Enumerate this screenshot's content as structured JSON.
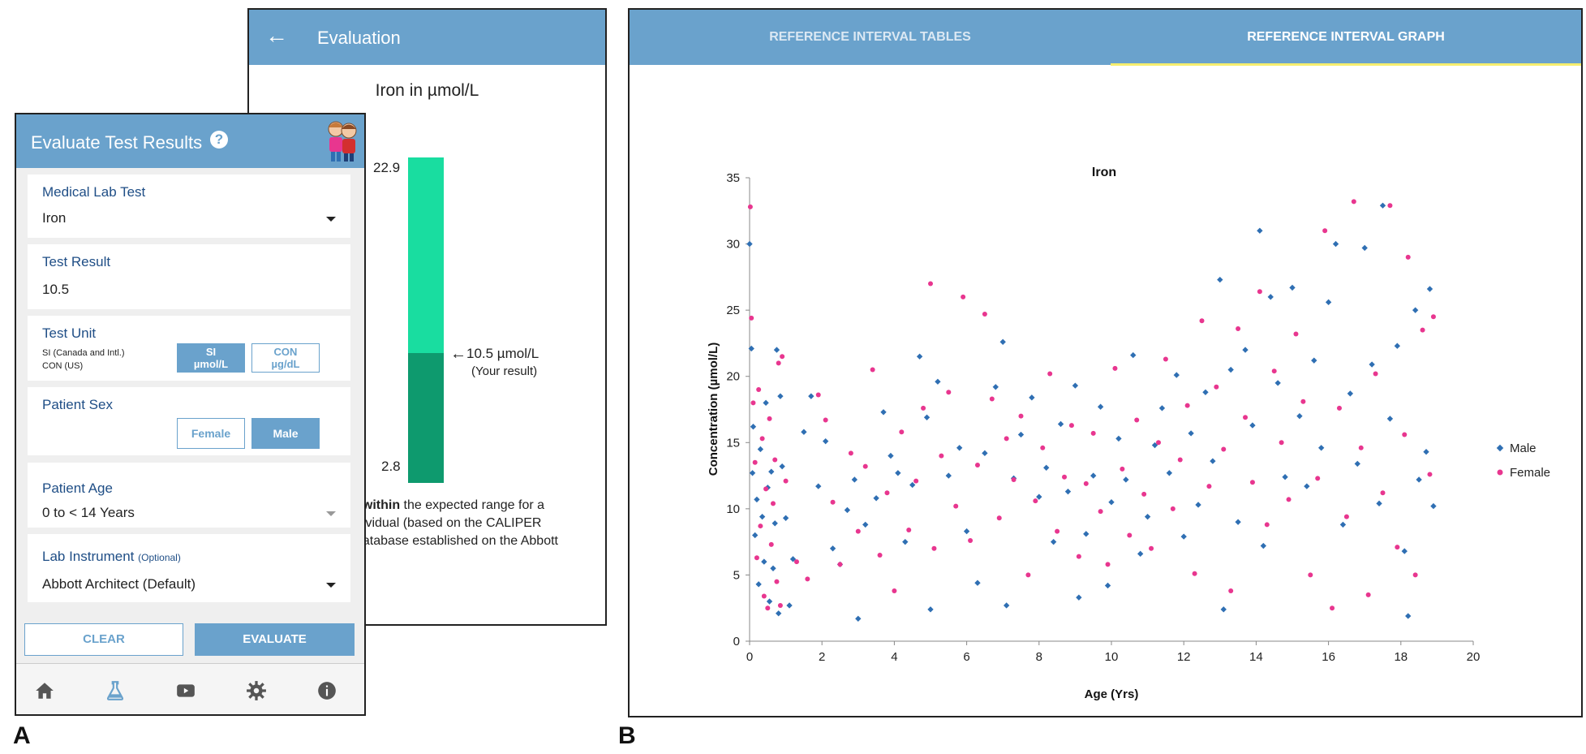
{
  "figure_labels": {
    "a": "A",
    "b": "B"
  },
  "evaluation": {
    "header_title": "Evaluation",
    "heading": "Iron in µmol/L",
    "upper_limit": "22.9",
    "lower_limit": "2.8",
    "result_value": "10.5 µmol/L",
    "result_caption": "(Your result)",
    "text_line1_bold": "l within",
    "text_line1_rest": " the expected range for a",
    "text_line2": "dividual (based on the CALIPER",
    "text_line3": "database established on the Abbott"
  },
  "phone": {
    "title": "Evaluate Test Results",
    "help": "?",
    "medical_lab_test": {
      "label": "Medical Lab Test",
      "value": "Iron"
    },
    "test_result": {
      "label": "Test Result",
      "value": "10.5"
    },
    "test_unit": {
      "label": "Test Unit",
      "line1": "SI (Canada and Intl.)",
      "line2": "CON (US)",
      "si_top": "SI",
      "si_bottom": "µmol/L",
      "con_top": "CON",
      "con_bottom": "µg/dL"
    },
    "patient_sex": {
      "label": "Patient Sex",
      "female": "Female",
      "male": "Male"
    },
    "patient_age": {
      "label": "Patient Age",
      "value": "0 to < 14 Years"
    },
    "lab_instrument": {
      "label": "Lab Instrument",
      "optional": "(Optional)",
      "value": "Abbott Architect (Default)"
    },
    "clear": "CLEAR",
    "evaluate": "EVALUATE",
    "nav": [
      "home-icon",
      "flask-icon",
      "video-icon",
      "gear-icon",
      "info-icon"
    ]
  },
  "reference": {
    "tab_tables": "REFERENCE INTERVAL TABLES",
    "tab_graph": "REFERENCE INTERVAL GRAPH"
  },
  "colors": {
    "accent": "#6aa2cc",
    "male": "#2f6fb3",
    "female": "#e8368f",
    "range_top": "#19dda0",
    "range_bottom": "#0e9a6e"
  },
  "chart_data": {
    "type": "scatter",
    "title": "Iron",
    "xlabel": "Age (Yrs)",
    "ylabel": "Concentration (µmol/L)",
    "xlim": [
      0,
      20
    ],
    "ylim": [
      0,
      35
    ],
    "xticks": [
      0,
      2,
      4,
      6,
      8,
      10,
      12,
      14,
      16,
      18,
      20
    ],
    "yticks": [
      0,
      5,
      10,
      15,
      20,
      25,
      30,
      35
    ],
    "grid": false,
    "legend": "right",
    "series": [
      {
        "name": "Male",
        "color": "#2f6fb3",
        "points": [
          [
            0.0,
            30.0
          ],
          [
            0.05,
            22.1
          ],
          [
            0.08,
            12.7
          ],
          [
            0.1,
            16.2
          ],
          [
            0.15,
            8.0
          ],
          [
            0.2,
            10.7
          ],
          [
            0.25,
            4.3
          ],
          [
            0.3,
            14.5
          ],
          [
            0.35,
            9.4
          ],
          [
            0.4,
            6.0
          ],
          [
            0.45,
            18.0
          ],
          [
            0.5,
            11.6
          ],
          [
            0.55,
            3.0
          ],
          [
            0.6,
            12.8
          ],
          [
            0.65,
            5.5
          ],
          [
            0.7,
            8.9
          ],
          [
            0.75,
            22.0
          ],
          [
            0.8,
            2.1
          ],
          [
            0.85,
            18.5
          ],
          [
            0.9,
            13.2
          ],
          [
            1.0,
            9.3
          ],
          [
            1.1,
            2.7
          ],
          [
            1.2,
            6.2
          ],
          [
            1.5,
            15.8
          ],
          [
            1.7,
            18.5
          ],
          [
            1.9,
            11.7
          ],
          [
            2.1,
            15.1
          ],
          [
            2.3,
            7.0
          ],
          [
            2.5,
            5.8
          ],
          [
            2.7,
            9.9
          ],
          [
            2.9,
            12.2
          ],
          [
            3.0,
            1.7
          ],
          [
            3.2,
            8.8
          ],
          [
            3.5,
            10.8
          ],
          [
            3.7,
            17.3
          ],
          [
            3.9,
            14.0
          ],
          [
            4.1,
            12.7
          ],
          [
            4.3,
            7.5
          ],
          [
            4.5,
            11.8
          ],
          [
            4.7,
            21.5
          ],
          [
            4.9,
            16.9
          ],
          [
            5.0,
            2.4
          ],
          [
            5.2,
            19.6
          ],
          [
            5.5,
            12.5
          ],
          [
            5.8,
            14.6
          ],
          [
            6.0,
            8.3
          ],
          [
            6.3,
            4.4
          ],
          [
            6.5,
            14.2
          ],
          [
            6.8,
            19.2
          ],
          [
            7.0,
            22.6
          ],
          [
            7.1,
            2.7
          ],
          [
            7.3,
            12.3
          ],
          [
            7.5,
            15.6
          ],
          [
            7.8,
            18.4
          ],
          [
            8.0,
            10.9
          ],
          [
            8.2,
            13.1
          ],
          [
            8.4,
            7.5
          ],
          [
            8.6,
            16.4
          ],
          [
            8.8,
            11.3
          ],
          [
            9.0,
            19.3
          ],
          [
            9.1,
            3.3
          ],
          [
            9.3,
            8.1
          ],
          [
            9.5,
            12.5
          ],
          [
            9.7,
            17.7
          ],
          [
            9.9,
            4.2
          ],
          [
            10.0,
            10.5
          ],
          [
            10.2,
            15.3
          ],
          [
            10.4,
            12.2
          ],
          [
            10.6,
            21.6
          ],
          [
            10.8,
            6.6
          ],
          [
            11.0,
            9.4
          ],
          [
            11.2,
            14.8
          ],
          [
            11.4,
            17.6
          ],
          [
            11.6,
            12.7
          ],
          [
            11.8,
            20.1
          ],
          [
            12.0,
            7.9
          ],
          [
            12.2,
            15.7
          ],
          [
            12.4,
            10.3
          ],
          [
            12.6,
            18.8
          ],
          [
            12.8,
            13.6
          ],
          [
            13.0,
            27.3
          ],
          [
            13.1,
            2.4
          ],
          [
            13.3,
            20.5
          ],
          [
            13.5,
            9.0
          ],
          [
            13.7,
            22.0
          ],
          [
            13.9,
            16.3
          ],
          [
            14.1,
            31.0
          ],
          [
            14.2,
            7.2
          ],
          [
            14.4,
            26.0
          ],
          [
            14.6,
            19.5
          ],
          [
            14.8,
            12.4
          ],
          [
            15.0,
            26.7
          ],
          [
            15.2,
            17.0
          ],
          [
            15.4,
            11.7
          ],
          [
            15.6,
            21.2
          ],
          [
            15.8,
            14.6
          ],
          [
            16.0,
            25.6
          ],
          [
            16.2,
            30.0
          ],
          [
            16.4,
            8.8
          ],
          [
            16.6,
            18.7
          ],
          [
            16.8,
            13.4
          ],
          [
            17.0,
            29.7
          ],
          [
            17.2,
            20.9
          ],
          [
            17.4,
            10.4
          ],
          [
            17.5,
            32.9
          ],
          [
            17.7,
            16.8
          ],
          [
            17.9,
            22.3
          ],
          [
            18.1,
            6.8
          ],
          [
            18.2,
            1.9
          ],
          [
            18.4,
            25.0
          ],
          [
            18.5,
            12.2
          ],
          [
            18.7,
            14.3
          ],
          [
            18.8,
            26.6
          ],
          [
            18.9,
            10.2
          ]
        ]
      },
      {
        "name": "Female",
        "color": "#e8368f",
        "points": [
          [
            0.02,
            32.8
          ],
          [
            0.05,
            24.4
          ],
          [
            0.1,
            18.0
          ],
          [
            0.15,
            13.5
          ],
          [
            0.2,
            6.3
          ],
          [
            0.25,
            19.0
          ],
          [
            0.3,
            8.7
          ],
          [
            0.35,
            15.3
          ],
          [
            0.4,
            3.4
          ],
          [
            0.45,
            11.5
          ],
          [
            0.5,
            2.5
          ],
          [
            0.55,
            16.8
          ],
          [
            0.6,
            7.3
          ],
          [
            0.65,
            10.4
          ],
          [
            0.7,
            13.7
          ],
          [
            0.75,
            4.5
          ],
          [
            0.8,
            21.0
          ],
          [
            0.85,
            2.7
          ],
          [
            0.9,
            21.5
          ],
          [
            1.0,
            12.1
          ],
          [
            1.3,
            6.0
          ],
          [
            1.6,
            4.7
          ],
          [
            1.9,
            18.6
          ],
          [
            2.1,
            16.7
          ],
          [
            2.3,
            10.5
          ],
          [
            2.5,
            5.8
          ],
          [
            2.8,
            14.2
          ],
          [
            3.0,
            8.3
          ],
          [
            3.2,
            13.2
          ],
          [
            3.4,
            20.5
          ],
          [
            3.6,
            6.5
          ],
          [
            3.8,
            11.2
          ],
          [
            4.0,
            3.8
          ],
          [
            4.2,
            15.8
          ],
          [
            4.4,
            8.4
          ],
          [
            4.6,
            12.1
          ],
          [
            4.8,
            17.6
          ],
          [
            5.0,
            27.0
          ],
          [
            5.1,
            7.0
          ],
          [
            5.3,
            14.0
          ],
          [
            5.5,
            18.8
          ],
          [
            5.7,
            10.2
          ],
          [
            5.9,
            26.0
          ],
          [
            6.1,
            7.6
          ],
          [
            6.3,
            13.3
          ],
          [
            6.5,
            24.7
          ],
          [
            6.7,
            18.3
          ],
          [
            6.9,
            9.3
          ],
          [
            7.1,
            15.3
          ],
          [
            7.3,
            12.2
          ],
          [
            7.5,
            17.0
          ],
          [
            7.7,
            5.0
          ],
          [
            7.9,
            10.6
          ],
          [
            8.1,
            14.6
          ],
          [
            8.3,
            20.2
          ],
          [
            8.5,
            8.3
          ],
          [
            8.7,
            12.4
          ],
          [
            8.9,
            16.3
          ],
          [
            9.1,
            6.4
          ],
          [
            9.3,
            11.9
          ],
          [
            9.5,
            15.7
          ],
          [
            9.7,
            9.8
          ],
          [
            9.9,
            5.8
          ],
          [
            10.1,
            20.6
          ],
          [
            10.3,
            13.0
          ],
          [
            10.5,
            8.0
          ],
          [
            10.7,
            16.7
          ],
          [
            10.9,
            11.1
          ],
          [
            11.1,
            7.0
          ],
          [
            11.3,
            15.0
          ],
          [
            11.5,
            21.3
          ],
          [
            11.7,
            10.0
          ],
          [
            11.9,
            13.7
          ],
          [
            12.1,
            17.8
          ],
          [
            12.3,
            5.1
          ],
          [
            12.5,
            24.2
          ],
          [
            12.7,
            11.7
          ],
          [
            12.9,
            19.2
          ],
          [
            13.1,
            14.5
          ],
          [
            13.3,
            3.8
          ],
          [
            13.5,
            23.6
          ],
          [
            13.7,
            16.9
          ],
          [
            13.9,
            12.0
          ],
          [
            14.1,
            26.4
          ],
          [
            14.3,
            8.8
          ],
          [
            14.5,
            20.4
          ],
          [
            14.7,
            15.0
          ],
          [
            14.9,
            10.7
          ],
          [
            15.1,
            23.2
          ],
          [
            15.3,
            18.1
          ],
          [
            15.5,
            5.0
          ],
          [
            15.7,
            12.3
          ],
          [
            15.9,
            31.0
          ],
          [
            16.1,
            2.5
          ],
          [
            16.3,
            17.6
          ],
          [
            16.5,
            9.4
          ],
          [
            16.7,
            33.2
          ],
          [
            16.9,
            14.6
          ],
          [
            17.1,
            3.5
          ],
          [
            17.3,
            20.2
          ],
          [
            17.5,
            11.2
          ],
          [
            17.7,
            32.9
          ],
          [
            17.9,
            7.1
          ],
          [
            18.1,
            15.6
          ],
          [
            18.2,
            29.0
          ],
          [
            18.4,
            5.0
          ],
          [
            18.6,
            23.5
          ],
          [
            18.8,
            12.6
          ],
          [
            18.9,
            24.5
          ]
        ]
      }
    ]
  }
}
